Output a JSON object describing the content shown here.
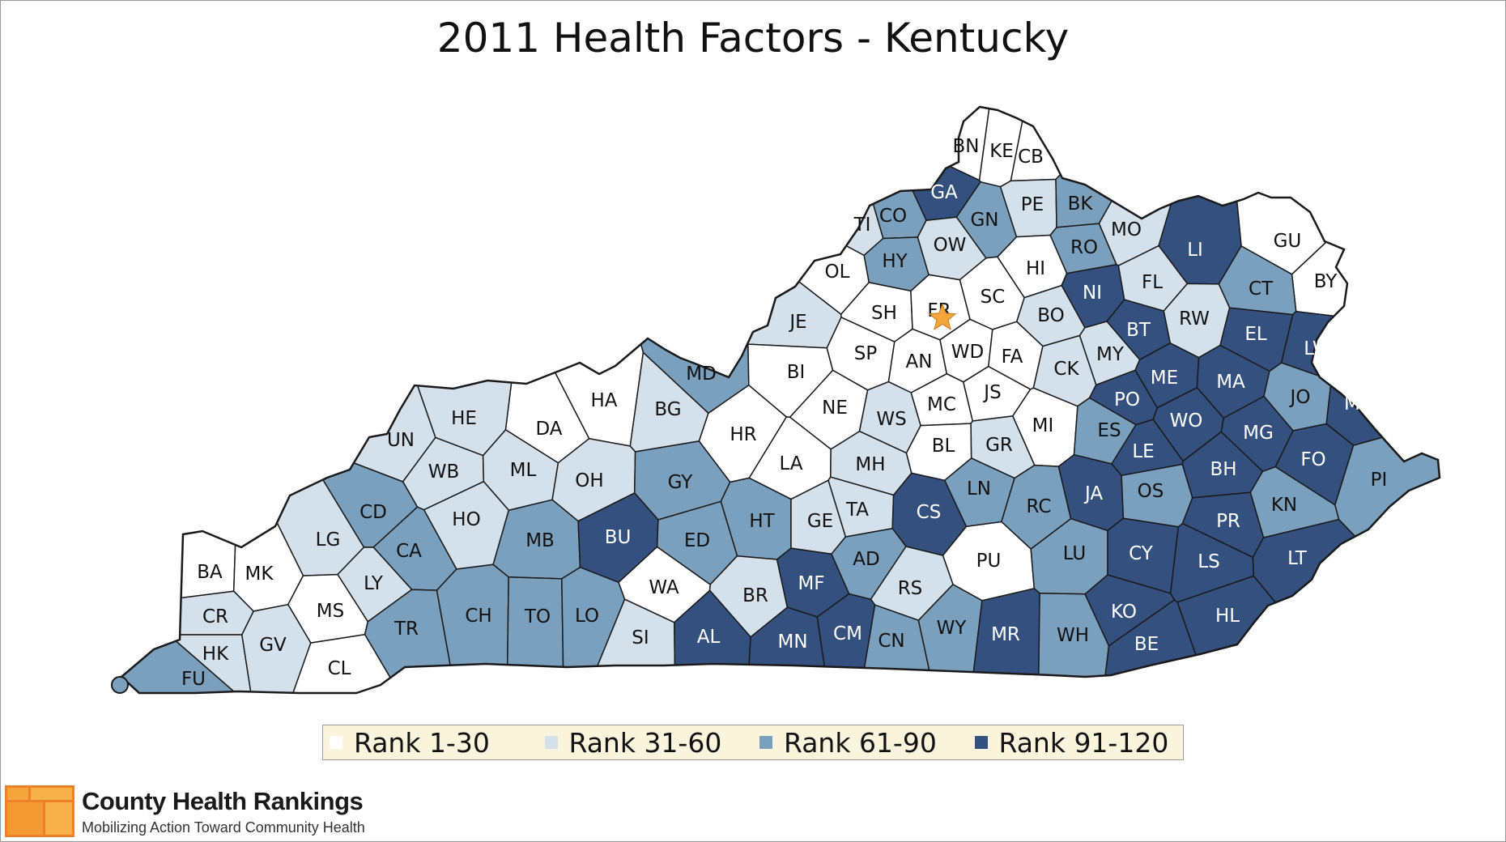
{
  "title": "2011 Health Factors - Kentucky",
  "colors": {
    "rank_1_30": "#ffffff",
    "rank_31_60": "#d5e1ea",
    "rank_61_90": "#7aa0bd",
    "rank_91_120": "#34507f",
    "border": "#1a1a1a",
    "capital_star": "#f4a63a",
    "legend_bg": "#fbf4dc"
  },
  "legend": [
    {
      "label": "Rank 1-30",
      "color": "#ffffff"
    },
    {
      "label": "Rank 31-60",
      "color": "#d5e1ea"
    },
    {
      "label": "Rank 61-90",
      "color": "#7aa0bd"
    },
    {
      "label": "Rank 91-120",
      "color": "#34507f"
    }
  ],
  "capital_marker": "star-icon",
  "counties": [
    {
      "code": "BN",
      "rank_group": 1
    },
    {
      "code": "KE",
      "rank_group": 1
    },
    {
      "code": "CB",
      "rank_group": 1
    },
    {
      "code": "GA",
      "rank_group": 4
    },
    {
      "code": "CO",
      "rank_group": 3
    },
    {
      "code": "TI",
      "rank_group": 2
    },
    {
      "code": "GN",
      "rank_group": 3
    },
    {
      "code": "PE",
      "rank_group": 2
    },
    {
      "code": "BK",
      "rank_group": 3
    },
    {
      "code": "MO",
      "rank_group": 2
    },
    {
      "code": "RO",
      "rank_group": 3
    },
    {
      "code": "LI",
      "rank_group": 4
    },
    {
      "code": "GU",
      "rank_group": 1
    },
    {
      "code": "BY",
      "rank_group": 1
    },
    {
      "code": "HY",
      "rank_group": 3
    },
    {
      "code": "OW",
      "rank_group": 2
    },
    {
      "code": "OL",
      "rank_group": 1
    },
    {
      "code": "HI",
      "rank_group": 1
    },
    {
      "code": "NI",
      "rank_group": 4
    },
    {
      "code": "FL",
      "rank_group": 2
    },
    {
      "code": "CT",
      "rank_group": 3
    },
    {
      "code": "JE",
      "rank_group": 2
    },
    {
      "code": "SH",
      "rank_group": 1
    },
    {
      "code": "FR",
      "rank_group": 1
    },
    {
      "code": "SC",
      "rank_group": 1
    },
    {
      "code": "BO",
      "rank_group": 2
    },
    {
      "code": "BT",
      "rank_group": 4
    },
    {
      "code": "RW",
      "rank_group": 2
    },
    {
      "code": "EL",
      "rank_group": 4
    },
    {
      "code": "LW",
      "rank_group": 4
    },
    {
      "code": "MD",
      "rank_group": 3
    },
    {
      "code": "BI",
      "rank_group": 1
    },
    {
      "code": "SP",
      "rank_group": 1
    },
    {
      "code": "AN",
      "rank_group": 1
    },
    {
      "code": "WD",
      "rank_group": 1
    },
    {
      "code": "FA",
      "rank_group": 1
    },
    {
      "code": "CK",
      "rank_group": 2
    },
    {
      "code": "MY",
      "rank_group": 2
    },
    {
      "code": "ME",
      "rank_group": 4
    },
    {
      "code": "MA",
      "rank_group": 4
    },
    {
      "code": "HE",
      "rank_group": 2
    },
    {
      "code": "HA",
      "rank_group": 1
    },
    {
      "code": "DA",
      "rank_group": 1
    },
    {
      "code": "BG",
      "rank_group": 2
    },
    {
      "code": "HR",
      "rank_group": 1
    },
    {
      "code": "NE",
      "rank_group": 1
    },
    {
      "code": "WS",
      "rank_group": 2
    },
    {
      "code": "MC",
      "rank_group": 1
    },
    {
      "code": "JS",
      "rank_group": 1
    },
    {
      "code": "MI",
      "rank_group": 1
    },
    {
      "code": "PO",
      "rank_group": 4
    },
    {
      "code": "WO",
      "rank_group": 4
    },
    {
      "code": "JO",
      "rank_group": 3
    },
    {
      "code": "MT",
      "rank_group": 4
    },
    {
      "code": "MG",
      "rank_group": 4
    },
    {
      "code": "UN",
      "rank_group": 2
    },
    {
      "code": "WB",
      "rank_group": 2
    },
    {
      "code": "ML",
      "rank_group": 2
    },
    {
      "code": "OH",
      "rank_group": 2
    },
    {
      "code": "GY",
      "rank_group": 3
    },
    {
      "code": "LA",
      "rank_group": 1
    },
    {
      "code": "MH",
      "rank_group": 2
    },
    {
      "code": "BL",
      "rank_group": 1
    },
    {
      "code": "GR",
      "rank_group": 2
    },
    {
      "code": "ES",
      "rank_group": 3
    },
    {
      "code": "LE",
      "rank_group": 4
    },
    {
      "code": "BH",
      "rank_group": 4
    },
    {
      "code": "FO",
      "rank_group": 4
    },
    {
      "code": "PI",
      "rank_group": 3
    },
    {
      "code": "CD",
      "rank_group": 3
    },
    {
      "code": "HO",
      "rank_group": 2
    },
    {
      "code": "HT",
      "rank_group": 3
    },
    {
      "code": "TA",
      "rank_group": 2
    },
    {
      "code": "LN",
      "rank_group": 3
    },
    {
      "code": "RC",
      "rank_group": 3
    },
    {
      "code": "JA",
      "rank_group": 4
    },
    {
      "code": "OS",
      "rank_group": 3
    },
    {
      "code": "KN",
      "rank_group": 3
    },
    {
      "code": "LG",
      "rank_group": 2
    },
    {
      "code": "CA",
      "rank_group": 3
    },
    {
      "code": "MB",
      "rank_group": 3
    },
    {
      "code": "BU",
      "rank_group": 4
    },
    {
      "code": "ED",
      "rank_group": 3
    },
    {
      "code": "GE",
      "rank_group": 2
    },
    {
      "code": "CS",
      "rank_group": 4
    },
    {
      "code": "PR",
      "rank_group": 4
    },
    {
      "code": "BA",
      "rank_group": 1
    },
    {
      "code": "MK",
      "rank_group": 1
    },
    {
      "code": "LY",
      "rank_group": 2
    },
    {
      "code": "AD",
      "rank_group": 3
    },
    {
      "code": "PU",
      "rank_group": 1
    },
    {
      "code": "LU",
      "rank_group": 3
    },
    {
      "code": "CY",
      "rank_group": 4
    },
    {
      "code": "LS",
      "rank_group": 4
    },
    {
      "code": "LT",
      "rank_group": 4
    },
    {
      "code": "CR",
      "rank_group": 2
    },
    {
      "code": "MS",
      "rank_group": 1
    },
    {
      "code": "TR",
      "rank_group": 3
    },
    {
      "code": "CH",
      "rank_group": 3
    },
    {
      "code": "TO",
      "rank_group": 3
    },
    {
      "code": "LO",
      "rank_group": 3
    },
    {
      "code": "WA",
      "rank_group": 1
    },
    {
      "code": "BR",
      "rank_group": 2
    },
    {
      "code": "MF",
      "rank_group": 4
    },
    {
      "code": "RS",
      "rank_group": 2
    },
    {
      "code": "HK",
      "rank_group": 2
    },
    {
      "code": "GV",
      "rank_group": 2
    },
    {
      "code": "SI",
      "rank_group": 2
    },
    {
      "code": "AL",
      "rank_group": 4
    },
    {
      "code": "MN",
      "rank_group": 4
    },
    {
      "code": "CM",
      "rank_group": 4
    },
    {
      "code": "CN",
      "rank_group": 3
    },
    {
      "code": "WY",
      "rank_group": 3
    },
    {
      "code": "MR",
      "rank_group": 4
    },
    {
      "code": "WH",
      "rank_group": 3
    },
    {
      "code": "KO",
      "rank_group": 4
    },
    {
      "code": "BE",
      "rank_group": 4
    },
    {
      "code": "HL",
      "rank_group": 4
    },
    {
      "code": "CL",
      "rank_group": 1
    },
    {
      "code": "FU",
      "rank_group": 3
    }
  ],
  "footer": {
    "org_name": "County Health Rankings",
    "tagline": "Mobilizing Action Toward Community Health"
  }
}
